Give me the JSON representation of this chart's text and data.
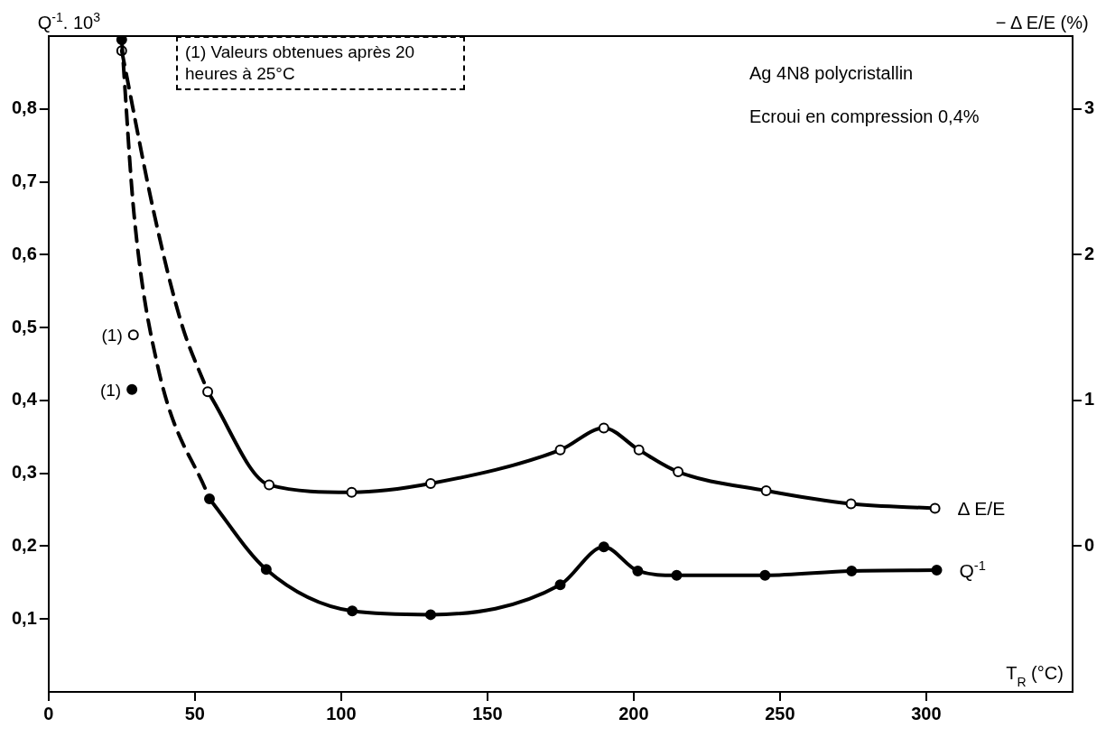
{
  "chart_data": {
    "type": "line",
    "xlabel": "T$_{R}$ (°C)",
    "ylabel": "Q$^{-1}$. 10$^{3}$",
    "y2label": "− Δ E/E (%)",
    "xlim": [
      0,
      350
    ],
    "xticks": [
      0,
      50,
      100,
      150,
      200,
      250,
      300
    ],
    "ylim": [
      0,
      0.9
    ],
    "yticks": [
      {
        "value": 0.1,
        "label": "0,1"
      },
      {
        "value": 0.2,
        "label": "0,2"
      },
      {
        "value": 0.3,
        "label": "0,3"
      },
      {
        "value": 0.4,
        "label": "0,4"
      },
      {
        "value": 0.5,
        "label": "0,5"
      },
      {
        "value": 0.6,
        "label": "0,6"
      },
      {
        "value": 0.7,
        "label": "0,7"
      },
      {
        "value": 0.8,
        "label": "0,8"
      }
    ],
    "y2lim": [
      -1,
      3.5
    ],
    "y2ticks": [
      0,
      1,
      2,
      3
    ],
    "grid": false,
    "legend": false,
    "marker": "circle",
    "line_style": "solid",
    "series": [
      {
        "name": "Q$^{-1}$",
        "color": "#000000",
        "x": [
          55,
          74.4,
          103.8,
          130.6,
          174.9,
          189.8,
          201.4,
          214.7,
          244.9,
          274.5,
          303.6
        ],
        "values": [
          0.265,
          0.168,
          0.111,
          0.106,
          0.147,
          0.199,
          0.166,
          0.16,
          0.16,
          0.166,
          0.167
        ]
      },
      {
        "color": "#000000",
        "line_style": "dashed",
        "marker": "none",
        "x": [
          25,
          29.2,
          37.3,
          55
        ],
        "values": [
          0.895,
          0.656,
          0.447,
          0.265
        ]
      },
      {
        "type": "scatter",
        "color": "#000000",
        "x": [
          25,
          28.5
        ],
        "values": [
          0.895,
          0.415
        ]
      },
      {
        "name": "Δ E/E",
        "color": "#000000",
        "axis": "y2",
        "x": [
          54.4,
          75.4,
          103.6,
          130.6,
          174.9,
          189.8,
          201.8,
          215.2,
          245.3,
          274.3,
          303
        ],
        "values": [
          1.06,
          0.42,
          0.37,
          0.43,
          0.66,
          0.81,
          0.66,
          0.51,
          0.38,
          0.29,
          0.26
        ]
      },
      {
        "color": "#000000",
        "axis": "y2",
        "line_style": "dashed",
        "marker": "none",
        "x": [
          25,
          36.1,
          45.4,
          54.4
        ],
        "values": [
          3.4,
          2.28,
          1.53,
          1.06
        ]
      },
      {
        "type": "scatter",
        "color": "#000000",
        "axis": "y2",
        "x": [
          25,
          29
        ],
        "values": [
          3.4,
          1.45
        ]
      }
    ],
    "annotations": [
      "(1) Valeurs obtenues après 20 heures à 25°C",
      "Ag 4N8 polycristallin",
      "Ecroui en compression 0,4%",
      {
        "text": "(1)",
        "x": 29,
        "y": 0.49
      },
      {
        "text": "(1)",
        "x": 28.5,
        "y": 0.415
      }
    ]
  }
}
